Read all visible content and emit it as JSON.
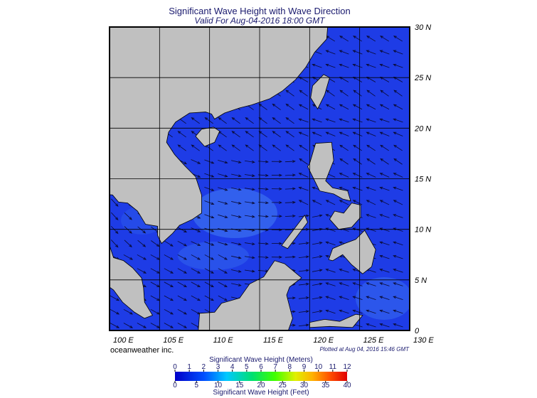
{
  "map": {
    "title": "Significant Wave Height with Wave Direction",
    "subtitle": "Valid For Aug-04-2016 18:00 GMT",
    "lonlim": [
      100,
      130
    ],
    "latlim": [
      0,
      30
    ],
    "lonticks": [
      {
        "value": 100,
        "label": "100 E"
      },
      {
        "value": 105,
        "label": "105 E"
      },
      {
        "value": 110,
        "label": "110 E"
      },
      {
        "value": 115,
        "label": "115 E"
      },
      {
        "value": 120,
        "label": "120 E"
      },
      {
        "value": 125,
        "label": "125 E"
      },
      {
        "value": 130,
        "label": "130 E"
      }
    ],
    "latticks": [
      {
        "value": 30,
        "label": "30 N"
      },
      {
        "value": 25,
        "label": "25 N"
      },
      {
        "value": 20,
        "label": "20 N"
      },
      {
        "value": 15,
        "label": "15 N"
      },
      {
        "value": 10,
        "label": "10 N"
      },
      {
        "value": 5,
        "label": "5 N"
      },
      0
    ],
    "credit": "oceanweather inc.",
    "plotted": "Plotted at Aug 04, 2016 15:46 GMT"
  },
  "colorbar": {
    "meters_title": "Significant Wave Height (Meters)",
    "meters_lim": [
      0,
      12
    ],
    "meters_ticks": [
      0,
      1,
      2,
      3,
      4,
      5,
      6,
      7,
      8,
      9,
      10,
      11,
      12
    ],
    "feet_title": "Significant Wave Height (Feet)",
    "feet_lim": [
      0,
      40
    ],
    "feet_ticks": [
      0,
      5,
      10,
      15,
      20,
      25,
      30,
      35,
      40
    ]
  }
}
